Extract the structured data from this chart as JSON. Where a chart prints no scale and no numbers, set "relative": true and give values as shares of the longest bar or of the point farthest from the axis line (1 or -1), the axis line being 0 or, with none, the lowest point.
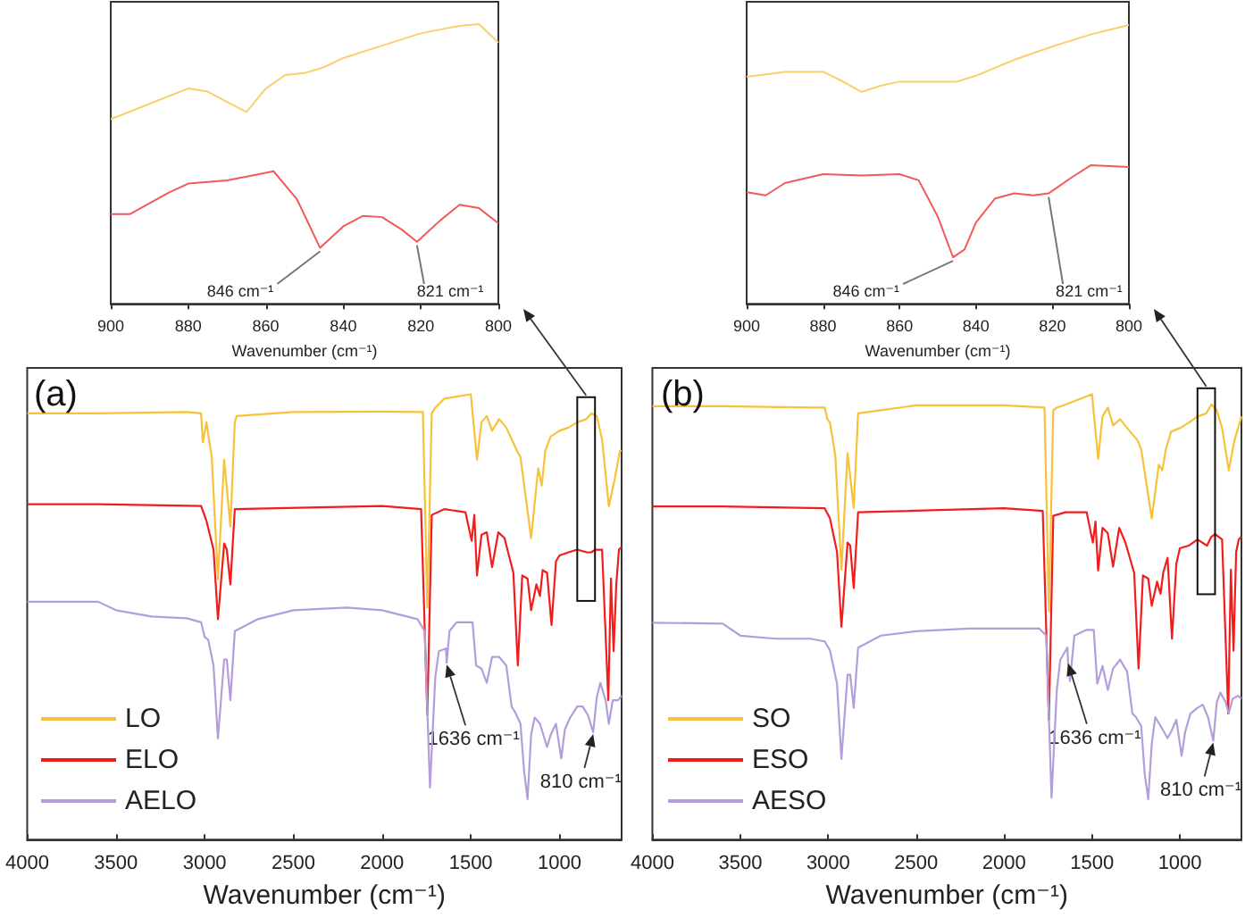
{
  "chart_data": [
    {
      "type": "line",
      "relative": true,
      "xlabel": "Wavenumber (cm⁻¹)",
      "xlim": [
        900,
        800
      ],
      "xticks": [
        900,
        880,
        860,
        840,
        820,
        800
      ],
      "marker": "none",
      "series": [
        {
          "color": "#f9d06a",
          "x": [
            900,
            890,
            880,
            875,
            870,
            865,
            860,
            855,
            850,
            845,
            840,
            830,
            820,
            810,
            805,
            800
          ],
          "values": [
            0.66,
            0.715,
            0.77,
            0.759,
            0.722,
            0.686,
            0.77,
            0.818,
            0.825,
            0.846,
            0.879,
            0.923,
            0.967,
            0.994,
            1.0,
            0.934
          ]
        },
        {
          "color": "#f25a5a",
          "x": [
            900,
            895,
            885,
            880,
            870,
            862,
            858,
            852,
            846,
            840,
            835,
            830,
            825,
            821,
            815,
            810,
            805,
            800
          ],
          "values": [
            0.321,
            0.321,
            0.398,
            0.43,
            0.441,
            0.463,
            0.474,
            0.375,
            0.2,
            0.277,
            0.314,
            0.31,
            0.266,
            0.222,
            0.298,
            0.354,
            0.342,
            0.288
          ]
        }
      ],
      "annotations": [
        {
          "text": "846 cm⁻¹",
          "x": 846,
          "y": 0.2
        },
        {
          "text": "821 cm⁻¹",
          "x": 821,
          "y": 0.222
        }
      ]
    },
    {
      "type": "line",
      "relative": true,
      "xlabel": "Wavenumber (cm⁻¹)",
      "xlim": [
        900,
        800
      ],
      "xticks": [
        900,
        880,
        860,
        840,
        820,
        800
      ],
      "marker": "none",
      "series": [
        {
          "color": "#f9d06a",
          "x": [
            900,
            890,
            880,
            875,
            870,
            865,
            860,
            850,
            845,
            840,
            830,
            820,
            810,
            805,
            800
          ],
          "values": [
            0.814,
            0.832,
            0.832,
            0.799,
            0.76,
            0.782,
            0.797,
            0.797,
            0.797,
            0.818,
            0.875,
            0.923,
            0.966,
            0.983,
            1.0
          ]
        },
        {
          "color": "#f25a5a",
          "x": [
            900,
            895,
            890,
            880,
            870,
            860,
            855,
            850,
            846,
            843,
            840,
            835,
            830,
            825,
            821,
            815,
            810,
            800
          ],
          "values": [
            0.4,
            0.389,
            0.433,
            0.465,
            0.46,
            0.465,
            0.443,
            0.313,
            0.167,
            0.195,
            0.292,
            0.378,
            0.396,
            0.389,
            0.396,
            0.453,
            0.497,
            0.491
          ]
        }
      ],
      "annotations": [
        {
          "text": "846 cm⁻¹",
          "x": 846,
          "y": 0.167
        },
        {
          "text": "821 cm⁻¹",
          "x": 821,
          "y": 0.396
        }
      ]
    },
    {
      "type": "line",
      "relative": true,
      "title": "(a)",
      "xlabel": "Wavenumber (cm⁻¹)",
      "xlim": [
        4000,
        650
      ],
      "xticks": [
        4000,
        3500,
        3000,
        2500,
        2000,
        1500,
        1000
      ],
      "marker": "none",
      "legend": "bottom left",
      "series": [
        {
          "name": "LO",
          "color": "#f7c13a",
          "x": [
            4000,
            3600,
            3100,
            3020,
            3010,
            2990,
            2960,
            2925,
            2890,
            2855,
            2830,
            2820,
            2500,
            2000,
            1770,
            1745,
            1720,
            1700,
            1650,
            1500,
            1465,
            1440,
            1410,
            1380,
            1340,
            1300,
            1240,
            1220,
            1160,
            1120,
            1100,
            1080,
            1050,
            1000,
            950,
            900,
            850,
            820,
            790,
            760,
            722,
            690,
            660,
            650
          ],
          "values": [
            0.957,
            0.957,
            0.96,
            0.957,
            0.892,
            0.937,
            0.859,
            0.585,
            0.853,
            0.703,
            0.937,
            0.951,
            0.96,
            0.961,
            0.96,
            0.521,
            0.957,
            0.97,
            0.99,
            1.0,
            0.853,
            0.937,
            0.951,
            0.918,
            0.944,
            0.925,
            0.873,
            0.859,
            0.677,
            0.834,
            0.795,
            0.873,
            0.905,
            0.918,
            0.925,
            0.937,
            0.944,
            0.957,
            0.951,
            0.898,
            0.749,
            0.807,
            0.873,
            0.873
          ]
        },
        {
          "name": "ELO",
          "color": "#f21c1c",
          "x": [
            4000,
            3600,
            3020,
            2990,
            2950,
            2925,
            2890,
            2875,
            2855,
            2830,
            2000,
            1780,
            1745,
            1720,
            1650,
            1530,
            1495,
            1480,
            1465,
            1440,
            1410,
            1380,
            1345,
            1310,
            1260,
            1235,
            1210,
            1180,
            1160,
            1130,
            1110,
            1095,
            1070,
            1045,
            1020,
            1000,
            950,
            900,
            846,
            821,
            800,
            760,
            725,
            710,
            695,
            680,
            665,
            650
          ],
          "values": [
            0.753,
            0.753,
            0.749,
            0.716,
            0.651,
            0.495,
            0.665,
            0.651,
            0.573,
            0.742,
            0.749,
            0.742,
            0.28,
            0.729,
            0.742,
            0.735,
            0.671,
            0.729,
            0.593,
            0.684,
            0.69,
            0.612,
            0.69,
            0.677,
            0.599,
            0.391,
            0.593,
            0.586,
            0.515,
            0.573,
            0.547,
            0.605,
            0.599,
            0.482,
            0.625,
            0.638,
            0.645,
            0.651,
            0.645,
            0.645,
            0.651,
            0.651,
            0.313,
            0.586,
            0.423,
            0.573,
            0.651,
            0.657
          ]
        },
        {
          "name": "AELO",
          "color": "#b39ddb",
          "x": [
            4000,
            3600,
            3500,
            3300,
            3100,
            3020,
            3000,
            2980,
            2950,
            2925,
            2890,
            2875,
            2855,
            2830,
            2700,
            2500,
            2200,
            2000,
            1800,
            1760,
            1730,
            1700,
            1680,
            1640,
            1636,
            1620,
            1580,
            1490,
            1470,
            1440,
            1410,
            1380,
            1340,
            1300,
            1270,
            1250,
            1220,
            1200,
            1180,
            1160,
            1140,
            1110,
            1070,
            1050,
            1020,
            990,
            970,
            940,
            900,
            870,
            840,
            810,
            790,
            770,
            740,
            722,
            700,
            670,
            650
          ],
          "values": [
            0.534,
            0.534,
            0.515,
            0.501,
            0.497,
            0.488,
            0.455,
            0.449,
            0.391,
            0.227,
            0.404,
            0.404,
            0.313,
            0.468,
            0.495,
            0.515,
            0.521,
            0.515,
            0.495,
            0.468,
            0.117,
            0.365,
            0.423,
            0.429,
            0.397,
            0.468,
            0.488,
            0.488,
            0.391,
            0.384,
            0.352,
            0.41,
            0.41,
            0.391,
            0.299,
            0.286,
            0.26,
            0.156,
            0.091,
            0.235,
            0.274,
            0.26,
            0.208,
            0.235,
            0.26,
            0.182,
            0.247,
            0.274,
            0.299,
            0.299,
            0.28,
            0.241,
            0.319,
            0.352,
            0.313,
            0.26,
            0.313,
            0.313,
            0.323
          ]
        }
      ],
      "annotations": [
        {
          "text": "1636 cm⁻¹",
          "x": 1636,
          "y": 0.397
        },
        {
          "text": "810 cm⁻¹",
          "x": 810,
          "y": 0.241
        }
      ]
    },
    {
      "type": "line",
      "relative": true,
      "title": "(b)",
      "xlabel": "Wavenumber (cm⁻¹)",
      "xlim": [
        4000,
        650
      ],
      "xticks": [
        4000,
        3500,
        3000,
        2500,
        2000,
        1500,
        1000
      ],
      "marker": "none",
      "legend": "bottom left",
      "series": [
        {
          "name": "SO",
          "color": "#f7c13a",
          "x": [
            4000,
            3600,
            3100,
            3020,
            3005,
            2990,
            2960,
            2925,
            2890,
            2855,
            2830,
            2500,
            2000,
            1770,
            1745,
            1720,
            1700,
            1650,
            1500,
            1465,
            1440,
            1410,
            1380,
            1340,
            1300,
            1240,
            1220,
            1160,
            1120,
            1100,
            1080,
            1050,
            1000,
            950,
            900,
            850,
            820,
            790,
            760,
            722,
            690,
            650
          ],
          "values": [
            0.973,
            0.973,
            0.97,
            0.97,
            0.944,
            0.936,
            0.863,
            0.606,
            0.868,
            0.745,
            0.957,
            0.975,
            0.975,
            0.97,
            0.512,
            0.964,
            0.97,
            0.977,
            1.0,
            0.855,
            0.95,
            0.97,
            0.93,
            0.944,
            0.924,
            0.896,
            0.876,
            0.721,
            0.842,
            0.829,
            0.876,
            0.916,
            0.924,
            0.936,
            0.95,
            0.957,
            0.977,
            0.964,
            0.924,
            0.829,
            0.896,
            0.95
          ]
        },
        {
          "name": "ESO",
          "color": "#f21c1c",
          "x": [
            4000,
            3600,
            3020,
            2990,
            2950,
            2925,
            2890,
            2875,
            2855,
            2830,
            2000,
            1780,
            1745,
            1720,
            1650,
            1530,
            1495,
            1480,
            1465,
            1440,
            1410,
            1380,
            1345,
            1310,
            1260,
            1235,
            1210,
            1180,
            1160,
            1130,
            1110,
            1095,
            1070,
            1045,
            1020,
            1000,
            950,
            900,
            846,
            821,
            800,
            760,
            725,
            710,
            695,
            680,
            665,
            650
          ],
          "values": [
            0.748,
            0.748,
            0.744,
            0.721,
            0.646,
            0.478,
            0.667,
            0.66,
            0.565,
            0.735,
            0.744,
            0.738,
            0.269,
            0.727,
            0.735,
            0.735,
            0.667,
            0.714,
            0.604,
            0.7,
            0.688,
            0.613,
            0.7,
            0.667,
            0.599,
            0.384,
            0.593,
            0.586,
            0.525,
            0.579,
            0.552,
            0.599,
            0.633,
            0.451,
            0.62,
            0.654,
            0.66,
            0.674,
            0.66,
            0.68,
            0.686,
            0.674,
            0.283,
            0.606,
            0.424,
            0.646,
            0.674,
            0.68
          ]
        },
        {
          "name": "AESO",
          "color": "#b39ddb",
          "x": [
            4000,
            3600,
            3500,
            3300,
            3100,
            3020,
            2990,
            2950,
            2925,
            2890,
            2875,
            2855,
            2830,
            2700,
            2500,
            2200,
            2000,
            1800,
            1760,
            1730,
            1700,
            1680,
            1640,
            1636,
            1625,
            1600,
            1530,
            1490,
            1470,
            1440,
            1410,
            1380,
            1340,
            1300,
            1270,
            1250,
            1220,
            1200,
            1180,
            1160,
            1140,
            1110,
            1070,
            1050,
            1020,
            990,
            970,
            940,
            900,
            870,
            840,
            810,
            790,
            770,
            740,
            722,
            700,
            670,
            650
          ],
          "values": [
            0.487,
            0.485,
            0.458,
            0.451,
            0.451,
            0.445,
            0.425,
            0.35,
            0.181,
            0.37,
            0.37,
            0.296,
            0.431,
            0.458,
            0.468,
            0.474,
            0.474,
            0.474,
            0.458,
            0.094,
            0.336,
            0.404,
            0.431,
            0.4,
            0.356,
            0.458,
            0.471,
            0.471,
            0.35,
            0.39,
            0.336,
            0.384,
            0.404,
            0.377,
            0.283,
            0.275,
            0.255,
            0.147,
            0.091,
            0.215,
            0.275,
            0.255,
            0.228,
            0.242,
            0.269,
            0.188,
            0.242,
            0.283,
            0.296,
            0.303,
            0.275,
            0.222,
            0.309,
            0.33,
            0.309,
            0.283,
            0.316,
            0.323,
            0.316
          ]
        }
      ],
      "annotations": [
        {
          "text": "1636 cm⁻¹",
          "x": 1636,
          "y": 0.4
        },
        {
          "text": "810 cm⁻¹",
          "x": 810,
          "y": 0.222
        }
      ]
    }
  ]
}
